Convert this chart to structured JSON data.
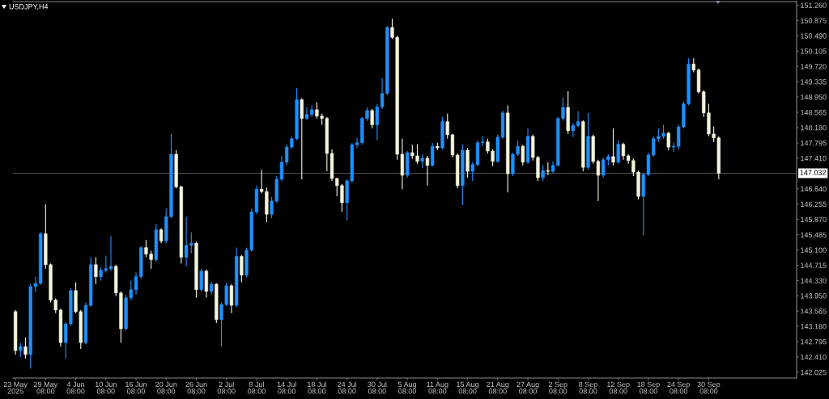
{
  "chart_data": {
    "type": "candlestick",
    "title": "USDJPY,H4",
    "categories": [
      "23 May 2025",
      null,
      null,
      null,
      null,
      null,
      "29 May 08:00",
      null,
      null,
      null,
      null,
      null,
      "4 Jun 08:00",
      null,
      null,
      null,
      null,
      null,
      "10 Jun 08:00",
      null,
      null,
      null,
      null,
      null,
      "16 Jun 08:00",
      null,
      null,
      null,
      null,
      null,
      "20 Jun 08:00",
      null,
      null,
      null,
      null,
      null,
      "26 Jun 08:00",
      null,
      null,
      null,
      null,
      null,
      "2 Jul 08:00",
      null,
      null,
      null,
      null,
      null,
      "8 Jul 08:00",
      null,
      null,
      null,
      null,
      null,
      "14 Jul 08:00",
      null,
      null,
      null,
      null,
      null,
      "18 Jul 08:00",
      null,
      null,
      null,
      null,
      null,
      "24 Jul 08:00",
      null,
      null,
      null,
      null,
      null,
      "30 Jul 08:00",
      null,
      null,
      null,
      null,
      null,
      "5 Aug 08:00",
      null,
      null,
      null,
      null,
      null,
      "11 Aug 08:00",
      null,
      null,
      null,
      null,
      null,
      "15 Aug 08:00",
      null,
      null,
      null,
      null,
      null,
      "21 Aug 08:00",
      null,
      null,
      null,
      null,
      null,
      "27 Aug 08:00",
      null,
      null,
      null,
      null,
      null,
      "2 Sep 08:00",
      null,
      null,
      null,
      null,
      null,
      "8 Sep 08:00",
      null,
      null,
      null,
      null,
      null,
      "12 Sep 08:00",
      null,
      null,
      null,
      null,
      null,
      "18 Sep 08:00",
      null,
      null,
      null,
      null,
      null,
      "24 Sep 08:00",
      null,
      null,
      null,
      null,
      null,
      "30 Sep 08:00",
      null,
      null,
      null,
      null,
      null,
      null,
      null,
      null,
      null,
      null,
      null,
      null,
      null,
      null,
      null,
      null,
      null
    ],
    "ohlc": [
      [
        143.55,
        143.59,
        142.47,
        142.57
      ],
      [
        142.57,
        142.77,
        142.41,
        142.67
      ],
      [
        142.67,
        142.9,
        142.37,
        142.47
      ],
      [
        142.47,
        144.24,
        142.12,
        144.18
      ],
      [
        144.18,
        144.43,
        144.04,
        144.26
      ],
      [
        144.26,
        145.55,
        144.22,
        145.51
      ],
      [
        145.51,
        146.25,
        144.63,
        144.73
      ],
      [
        144.73,
        144.76,
        143.78,
        143.84
      ],
      [
        143.84,
        143.88,
        143.51,
        143.59
      ],
      [
        143.59,
        143.63,
        142.67,
        142.77
      ],
      [
        142.77,
        143.28,
        142.37,
        143.24
      ],
      [
        143.24,
        144.14,
        143.2,
        144.08
      ],
      [
        144.08,
        144.29,
        143.51,
        143.55
      ],
      [
        143.55,
        143.59,
        142.61,
        142.77
      ],
      [
        142.77,
        143.78,
        142.73,
        143.71
      ],
      [
        143.71,
        144.92,
        143.67,
        144.73
      ],
      [
        144.73,
        144.92,
        144.24,
        144.43
      ],
      [
        144.43,
        144.67,
        144.33,
        144.59
      ],
      [
        144.59,
        144.96,
        144.53,
        144.63
      ],
      [
        144.63,
        145.45,
        144.57,
        144.69
      ],
      [
        144.69,
        144.73,
        143.94,
        144.02
      ],
      [
        144.02,
        144.06,
        142.77,
        143.12
      ],
      [
        143.12,
        143.98,
        143.08,
        143.9
      ],
      [
        143.9,
        144.33,
        143.84,
        144.1
      ],
      [
        144.1,
        144.53,
        143.98,
        144.43
      ],
      [
        144.43,
        145.2,
        144.37,
        145.16
      ],
      [
        145.16,
        145.35,
        144.92,
        145.0
      ],
      [
        145.0,
        145.08,
        144.63,
        144.86
      ],
      [
        144.86,
        145.75,
        144.8,
        145.61
      ],
      [
        145.61,
        145.65,
        145.27,
        145.33
      ],
      [
        145.33,
        146.14,
        145.27,
        145.94
      ],
      [
        145.94,
        148.02,
        145.9,
        147.51
      ],
      [
        147.51,
        147.61,
        146.65,
        146.69
      ],
      [
        146.69,
        146.72,
        144.76,
        144.92
      ],
      [
        144.92,
        145.94,
        144.69,
        145.22
      ],
      [
        145.22,
        145.55,
        145.02,
        145.27
      ],
      [
        145.27,
        145.31,
        143.9,
        144.1
      ],
      [
        144.1,
        144.63,
        144.06,
        144.57
      ],
      [
        144.57,
        144.61,
        143.9,
        144.06
      ],
      [
        144.06,
        144.29,
        143.98,
        144.24
      ],
      [
        144.24,
        144.27,
        143.26,
        143.35
      ],
      [
        143.35,
        143.78,
        142.67,
        143.73
      ],
      [
        143.73,
        144.27,
        143.69,
        144.2
      ],
      [
        144.2,
        144.24,
        143.51,
        143.71
      ],
      [
        143.71,
        145.16,
        143.67,
        144.94
      ],
      [
        144.94,
        144.98,
        144.29,
        144.47
      ],
      [
        144.47,
        145.16,
        144.41,
        145.1
      ],
      [
        145.1,
        146.14,
        145.06,
        146.06
      ],
      [
        146.06,
        146.72,
        146.0,
        146.63
      ],
      [
        146.63,
        147.12,
        146.53,
        146.57
      ],
      [
        146.57,
        146.67,
        145.8,
        146.0
      ],
      [
        146.0,
        146.43,
        145.9,
        146.33
      ],
      [
        146.33,
        146.96,
        146.29,
        146.88
      ],
      [
        146.88,
        147.47,
        146.84,
        147.31
      ],
      [
        147.31,
        147.76,
        147.23,
        147.69
      ],
      [
        147.69,
        147.96,
        147.65,
        147.9
      ],
      [
        147.9,
        149.18,
        147.86,
        148.88
      ],
      [
        148.88,
        148.92,
        146.88,
        148.41
      ],
      [
        148.41,
        148.69,
        148.37,
        148.51
      ],
      [
        148.51,
        148.74,
        148.45,
        148.63
      ],
      [
        148.63,
        148.82,
        148.41,
        148.47
      ],
      [
        148.47,
        148.53,
        148.25,
        148.41
      ],
      [
        148.41,
        148.45,
        147.08,
        147.53
      ],
      [
        147.53,
        147.63,
        146.84,
        146.9
      ],
      [
        146.9,
        146.92,
        146.45,
        146.72
      ],
      [
        146.72,
        146.76,
        146.06,
        146.29
      ],
      [
        146.29,
        146.88,
        145.84,
        146.84
      ],
      [
        146.84,
        147.8,
        146.8,
        147.75
      ],
      [
        147.75,
        147.92,
        147.67,
        147.8
      ],
      [
        147.8,
        148.45,
        147.75,
        148.41
      ],
      [
        148.41,
        148.69,
        148.35,
        148.61
      ],
      [
        148.61,
        148.65,
        148.16,
        148.25
      ],
      [
        148.25,
        148.78,
        147.86,
        148.7
      ],
      [
        148.7,
        149.43,
        148.65,
        149.04
      ],
      [
        149.04,
        150.74,
        149.0,
        150.7
      ],
      [
        150.7,
        150.92,
        150.41,
        150.45
      ],
      [
        150.45,
        150.49,
        147.37,
        147.51
      ],
      [
        147.51,
        147.9,
        146.63,
        146.98
      ],
      [
        146.98,
        147.59,
        146.92,
        147.55
      ],
      [
        147.55,
        147.75,
        147.39,
        147.47
      ],
      [
        147.47,
        147.76,
        147.27,
        147.33
      ],
      [
        147.33,
        147.51,
        147.16,
        147.41
      ],
      [
        147.41,
        147.47,
        146.72,
        147.23
      ],
      [
        147.23,
        147.8,
        147.2,
        147.71
      ],
      [
        147.71,
        147.8,
        147.61,
        147.67
      ],
      [
        147.67,
        148.45,
        147.63,
        148.33
      ],
      [
        148.33,
        148.53,
        147.9,
        148.0
      ],
      [
        148.0,
        148.02,
        147.43,
        147.49
      ],
      [
        147.49,
        147.53,
        146.65,
        146.72
      ],
      [
        146.72,
        147.76,
        146.23,
        147.61
      ],
      [
        147.61,
        147.67,
        146.92,
        147.08
      ],
      [
        147.08,
        147.31,
        146.84,
        147.25
      ],
      [
        147.25,
        147.86,
        147.21,
        147.8
      ],
      [
        147.8,
        147.96,
        147.71,
        147.82
      ],
      [
        147.82,
        147.9,
        147.53,
        147.59
      ],
      [
        147.59,
        147.63,
        147.21,
        147.33
      ],
      [
        147.33,
        148.0,
        147.29,
        147.94
      ],
      [
        147.94,
        148.61,
        147.9,
        148.55
      ],
      [
        148.55,
        148.74,
        146.55,
        147.02
      ],
      [
        147.02,
        147.55,
        146.96,
        147.51
      ],
      [
        147.51,
        147.86,
        147.47,
        147.71
      ],
      [
        147.71,
        147.75,
        147.23,
        147.31
      ],
      [
        147.31,
        148.16,
        147.27,
        147.96
      ],
      [
        147.96,
        148.0,
        147.35,
        147.43
      ],
      [
        147.43,
        147.47,
        146.84,
        146.92
      ],
      [
        146.92,
        147.23,
        146.84,
        147.1
      ],
      [
        147.1,
        147.31,
        146.98,
        147.08
      ],
      [
        147.08,
        147.33,
        147.04,
        147.23
      ],
      [
        147.23,
        148.45,
        147.2,
        148.41
      ],
      [
        148.41,
        148.94,
        148.35,
        148.69
      ],
      [
        148.69,
        149.1,
        148.02,
        148.1
      ],
      [
        148.1,
        148.29,
        147.94,
        148.23
      ],
      [
        148.23,
        148.59,
        148.2,
        148.33
      ],
      [
        148.33,
        148.37,
        147.08,
        147.18
      ],
      [
        147.18,
        148.55,
        147.12,
        147.96
      ],
      [
        147.96,
        148.0,
        147.27,
        147.33
      ],
      [
        147.33,
        147.37,
        146.33,
        146.98
      ],
      [
        146.98,
        147.43,
        146.92,
        147.37
      ],
      [
        147.37,
        147.51,
        147.23,
        147.45
      ],
      [
        147.45,
        148.16,
        147.23,
        147.31
      ],
      [
        147.31,
        147.86,
        147.27,
        147.76
      ],
      [
        147.76,
        147.8,
        147.37,
        147.47
      ],
      [
        147.47,
        147.51,
        147.27,
        147.35
      ],
      [
        147.35,
        147.41,
        146.96,
        147.06
      ],
      [
        147.06,
        147.1,
        146.37,
        146.45
      ],
      [
        146.45,
        147.04,
        145.47,
        147.0
      ],
      [
        147.0,
        147.55,
        146.96,
        147.49
      ],
      [
        147.49,
        147.96,
        147.45,
        147.9
      ],
      [
        147.9,
        148.16,
        147.82,
        147.96
      ],
      [
        147.96,
        148.25,
        147.9,
        148.04
      ],
      [
        148.04,
        148.08,
        147.61,
        147.69
      ],
      [
        147.69,
        147.8,
        147.57,
        147.71
      ],
      [
        147.71,
        148.25,
        147.63,
        148.2
      ],
      [
        148.2,
        148.84,
        148.16,
        148.78
      ],
      [
        148.78,
        149.92,
        148.74,
        149.78
      ],
      [
        149.78,
        149.92,
        149.57,
        149.63
      ],
      [
        149.63,
        149.67,
        149.04,
        149.08
      ],
      [
        149.08,
        149.12,
        148.45,
        148.55
      ],
      [
        148.55,
        148.78,
        147.96,
        148.02
      ],
      [
        148.02,
        148.21,
        147.82,
        147.92
      ],
      [
        147.92,
        147.96,
        146.88,
        147.032
      ],
      null,
      null,
      null,
      null,
      null,
      null,
      null,
      null,
      null,
      null,
      null,
      null,
      null,
      null,
      null
    ],
    "colors": [
      "#f5f5dc",
      "#1e90ff",
      "#f5f5dc",
      "#1e90ff",
      "#1e90ff",
      "#1e90ff",
      "#f5f5dc",
      "#f5f5dc",
      "#f5f5dc",
      "#f5f5dc",
      "#1e90ff",
      "#1e90ff",
      "#f5f5dc",
      "#f5f5dc",
      "#1e90ff",
      "#1e90ff",
      "#f5f5dc",
      "#1e90ff",
      "#1e90ff",
      "#1e90ff",
      "#f5f5dc",
      "#f5f5dc",
      "#1e90ff",
      "#1e90ff",
      "#1e90ff",
      "#1e90ff",
      "#f5f5dc",
      "#f5f5dc",
      "#1e90ff",
      "#f5f5dc",
      "#1e90ff",
      "#1e90ff",
      "#f5f5dc",
      "#f5f5dc",
      "#1e90ff",
      "#1e90ff",
      "#f5f5dc",
      "#1e90ff",
      "#f5f5dc",
      "#1e90ff",
      "#f5f5dc",
      "#1e90ff",
      "#1e90ff",
      "#f5f5dc",
      "#1e90ff",
      "#f5f5dc",
      "#1e90ff",
      "#1e90ff",
      "#1e90ff",
      "#f5f5dc",
      "#f5f5dc",
      "#1e90ff",
      "#1e90ff",
      "#1e90ff",
      "#1e90ff",
      "#1e90ff",
      "#1e90ff",
      "#f5f5dc",
      "#1e90ff",
      "#1e90ff",
      "#f5f5dc",
      "#f5f5dc",
      "#f5f5dc",
      "#f5f5dc",
      "#f5f5dc",
      "#f5f5dc",
      "#1e90ff",
      "#1e90ff",
      "#1e90ff",
      "#1e90ff",
      "#1e90ff",
      "#f5f5dc",
      "#1e90ff",
      "#1e90ff",
      "#1e90ff",
      "#f5f5dc",
      "#f5f5dc",
      "#f5f5dc",
      "#1e90ff",
      "#f5f5dc",
      "#f5f5dc",
      "#1e90ff",
      "#f5f5dc",
      "#1e90ff",
      "#f5f5dc",
      "#1e90ff",
      "#f5f5dc",
      "#f5f5dc",
      "#f5f5dc",
      "#1e90ff",
      "#f5f5dc",
      "#1e90ff",
      "#1e90ff",
      "#1e90ff",
      "#f5f5dc",
      "#f5f5dc",
      "#1e90ff",
      "#1e90ff",
      "#f5f5dc",
      "#1e90ff",
      "#1e90ff",
      "#f5f5dc",
      "#1e90ff",
      "#f5f5dc",
      "#f5f5dc",
      "#1e90ff",
      "#f5f5dc",
      "#1e90ff",
      "#1e90ff",
      "#1e90ff",
      "#f5f5dc",
      "#1e90ff",
      "#1e90ff",
      "#f5f5dc",
      "#1e90ff",
      "#f5f5dc",
      "#f5f5dc",
      "#1e90ff",
      "#1e90ff",
      "#f5f5dc",
      "#1e90ff",
      "#f5f5dc",
      "#f5f5dc",
      "#f5f5dc",
      "#f5f5dc",
      "#1e90ff",
      "#1e90ff",
      "#1e90ff",
      "#1e90ff",
      "#1e90ff",
      "#f5f5dc",
      "#1e90ff",
      "#1e90ff",
      "#1e90ff",
      "#1e90ff",
      "#f5f5dc",
      "#f5f5dc",
      "#f5f5dc",
      "#f5f5dc",
      "#f5f5dc",
      "#f5f5dc",
      null,
      null,
      null,
      null,
      null,
      null,
      null,
      null,
      null,
      null,
      null,
      null,
      null,
      null,
      null
    ],
    "ylim": [
      141.88,
      151.35
    ],
    "yticks": [
      {
        "value": 151.26,
        "label": "151.260"
      },
      {
        "value": 150.875,
        "label": "150.875"
      },
      {
        "value": 150.49,
        "label": "150.490"
      },
      {
        "value": 150.105,
        "label": "150.105"
      },
      {
        "value": 149.72,
        "label": "149.720"
      },
      {
        "value": 149.335,
        "label": "149.335"
      },
      {
        "value": 148.95,
        "label": "148.950"
      },
      {
        "value": 148.565,
        "label": "148.565"
      },
      {
        "value": 148.18,
        "label": "148.180"
      },
      {
        "value": 147.795,
        "label": "147.795"
      },
      {
        "value": 147.41,
        "label": "147.410"
      },
      {
        "value": 146.64,
        "label": "146.640"
      },
      {
        "value": 146.255,
        "label": "146.255"
      },
      {
        "value": 145.87,
        "label": "145.870"
      },
      {
        "value": 145.485,
        "label": "145.485"
      },
      {
        "value": 145.1,
        "label": "145.100"
      },
      {
        "value": 144.715,
        "label": "144.715"
      },
      {
        "value": 144.33,
        "label": "144.330"
      },
      {
        "value": 143.95,
        "label": "143.950"
      },
      {
        "value": 143.565,
        "label": "143.565"
      },
      {
        "value": 143.18,
        "label": "143.180"
      },
      {
        "value": 142.795,
        "label": "142.795"
      },
      {
        "value": 142.41,
        "label": "142.410"
      },
      {
        "value": 142.025,
        "label": "142.025"
      }
    ],
    "ref_lines": [
      {
        "axis": "y",
        "value": 147.032,
        "label": "147.032",
        "color": "#505050"
      }
    ]
  }
}
